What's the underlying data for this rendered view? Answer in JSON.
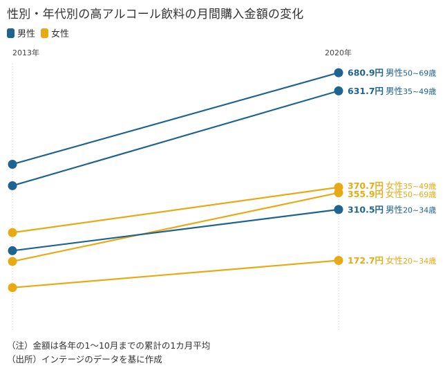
{
  "title": "性別・年代別の高アルコール飲料の月間購入金額の変化",
  "legend": [
    {
      "label": "男性",
      "color": "#1f6391"
    },
    {
      "label": "女性",
      "color": "#e8aa14"
    }
  ],
  "notes": [
    "（注）金額は各年の1～10月までの累計の1カ月平均",
    "（出所）インテージのデータを基に作成"
  ],
  "chart_data": {
    "type": "slope",
    "title": "性別・年代別の高アルコール飲料の月間購入金額の変化",
    "x": [
      "2013年",
      "2020年"
    ],
    "unit": "円",
    "ylim": [
      100,
      700
    ],
    "series": [
      {
        "name": "男性50~69歳",
        "gender": "男性",
        "age": "50~69歳",
        "values": [
          433,
          680.9
        ],
        "label": "680.9円",
        "color": "#1f6391"
      },
      {
        "name": "男性35~49歳",
        "gender": "男性",
        "age": "35~49歳",
        "values": [
          375,
          631.7
        ],
        "label": "631.7円",
        "color": "#1f6391"
      },
      {
        "name": "女性35~49歳",
        "gender": "女性",
        "age": "35~49歳",
        "values": [
          248,
          370.7
        ],
        "label": "370.7円",
        "color": "#e8aa14"
      },
      {
        "name": "女性50~69歳",
        "gender": "女性",
        "age": "50~69歳",
        "values": [
          170,
          355.9
        ],
        "label": "355.9円",
        "color": "#e8aa14"
      },
      {
        "name": "男性20~34歳",
        "gender": "男性",
        "age": "20~34歳",
        "values": [
          199,
          310.5
        ],
        "label": "310.5円",
        "color": "#1f6391"
      },
      {
        "name": "女性20~34歳",
        "gender": "女性",
        "age": "20~34歳",
        "values": [
          99,
          172.7
        ],
        "label": "172.7円",
        "color": "#e8aa14"
      }
    ]
  }
}
